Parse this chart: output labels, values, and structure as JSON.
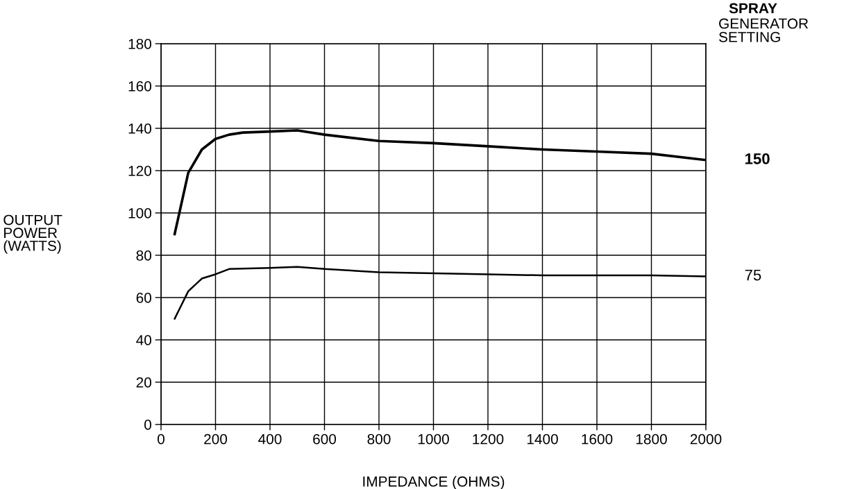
{
  "chart_data": {
    "type": "line",
    "title": "SPRAY",
    "legend_title": "GENERATOR SETTING",
    "xlabel": "IMPEDANCE (OHMS)",
    "ylabel": "OUTPUT\nPOWER\n(WATTS)",
    "xlim": [
      0,
      2000
    ],
    "xticks": [
      0,
      200,
      400,
      600,
      800,
      1000,
      1200,
      1400,
      1600,
      1800,
      2000
    ],
    "ylim": [
      0,
      180
    ],
    "yticks": [
      0,
      20,
      40,
      60,
      80,
      100,
      120,
      140,
      160,
      180
    ],
    "grid": true,
    "marker": "none",
    "line_style": "solid",
    "series": [
      {
        "name": "150",
        "color": "#000000",
        "x": [
          50,
          100,
          150,
          200,
          250,
          300,
          400,
          500,
          600,
          800,
          1000,
          1200,
          1400,
          1600,
          1800,
          2000
        ],
        "values": [
          90,
          119,
          130,
          135,
          137,
          138,
          138.5,
          139,
          137,
          134,
          133,
          131.5,
          130,
          129,
          128,
          125
        ]
      },
      {
        "name": "75",
        "color": "#000000",
        "x": [
          50,
          100,
          150,
          200,
          250,
          400,
          500,
          600,
          800,
          1000,
          1200,
          1400,
          1800,
          2000
        ],
        "values": [
          50,
          63,
          69,
          71,
          73.5,
          74,
          74.5,
          73.5,
          72,
          71.5,
          71,
          70.5,
          70.5,
          70
        ]
      }
    ]
  }
}
